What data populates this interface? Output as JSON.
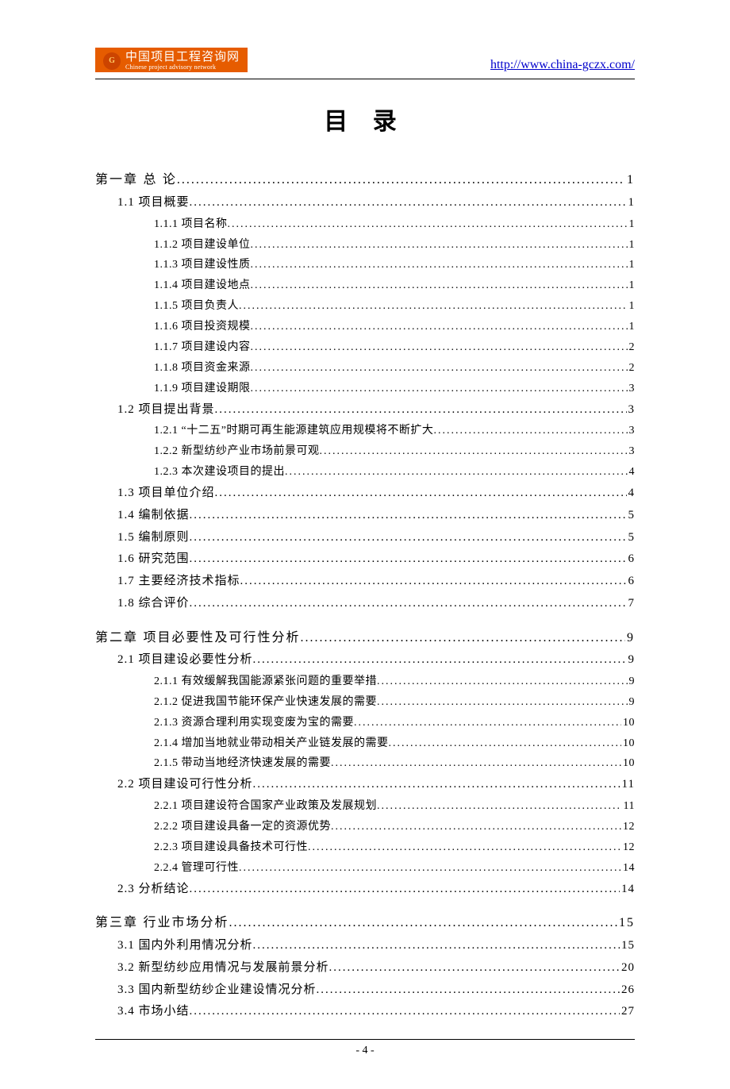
{
  "header": {
    "logo_cn": "中国项目工程咨询网",
    "logo_en": "Chinese project advisory network",
    "logo_mark": "G",
    "url": "http://www.china-gczx.com/",
    "logo_bg": "#e65c00",
    "link_color": "#0000cc"
  },
  "title": "目 录",
  "footer": "- 4 -",
  "toc": [
    {
      "level": 1,
      "label": "第一章 总 论",
      "page": "1"
    },
    {
      "level": 2,
      "label": "1.1 项目概要",
      "page": "1"
    },
    {
      "level": 3,
      "label": "1.1.1 项目名称",
      "page": "1"
    },
    {
      "level": 3,
      "label": "1.1.2 项目建设单位",
      "page": "1"
    },
    {
      "level": 3,
      "label": "1.1.3 项目建设性质",
      "page": "1"
    },
    {
      "level": 3,
      "label": "1.1.4 项目建设地点",
      "page": "1"
    },
    {
      "level": 3,
      "label": "1.1.5 项目负责人",
      "page": "1"
    },
    {
      "level": 3,
      "label": "1.1.6 项目投资规模",
      "page": "1"
    },
    {
      "level": 3,
      "label": "1.1.7 项目建设内容",
      "page": "2"
    },
    {
      "level": 3,
      "label": "1.1.8 项目资金来源",
      "page": "2"
    },
    {
      "level": 3,
      "label": "1.1.9 项目建设期限",
      "page": "3"
    },
    {
      "level": 2,
      "label": "1.2 项目提出背景",
      "page": "3"
    },
    {
      "level": 3,
      "label": "1.2.1 “十二五”时期可再生能源建筑应用规模将不断扩大",
      "page": "3"
    },
    {
      "level": 3,
      "label": "1.2.2 新型纺纱产业市场前景可观",
      "page": "3"
    },
    {
      "level": 3,
      "label": "1.2.3 本次建设项目的提出",
      "page": "4"
    },
    {
      "level": 2,
      "label": "1.3 项目单位介绍",
      "page": "4"
    },
    {
      "level": 2,
      "label": "1.4 编制依据",
      "page": "5"
    },
    {
      "level": 2,
      "label": "1.5 编制原则",
      "page": "5"
    },
    {
      "level": 2,
      "label": "1.6 研究范围",
      "page": "6"
    },
    {
      "level": 2,
      "label": "1.7 主要经济技术指标",
      "page": "6"
    },
    {
      "level": 2,
      "label": "1.8 综合评价",
      "page": "7"
    },
    {
      "level": 1,
      "label": "第二章 项目必要性及可行性分析",
      "page": "9"
    },
    {
      "level": 2,
      "label": "2.1 项目建设必要性分析",
      "page": "9"
    },
    {
      "level": 3,
      "label": "2.1.1 有效缓解我国能源紧张问题的重要举措",
      "page": "9"
    },
    {
      "level": 3,
      "label": "2.1.2 促进我国节能环保产业快速发展的需要",
      "page": "9"
    },
    {
      "level": 3,
      "label": "2.1.3 资源合理利用实现变废为宝的需要",
      "page": "10"
    },
    {
      "level": 3,
      "label": "2.1.4 增加当地就业带动相关产业链发展的需要",
      "page": "10"
    },
    {
      "level": 3,
      "label": "2.1.5 带动当地经济快速发展的需要",
      "page": "10"
    },
    {
      "level": 2,
      "label": "2.2 项目建设可行性分析",
      "page": "11"
    },
    {
      "level": 3,
      "label": "2.2.1 项目建设符合国家产业政策及发展规划",
      "page": "11"
    },
    {
      "level": 3,
      "label": "2.2.2 项目建设具备一定的资源优势",
      "page": "12"
    },
    {
      "level": 3,
      "label": "2.2.3 项目建设具备技术可行性",
      "page": "12"
    },
    {
      "level": 3,
      "label": "2.2.4 管理可行性",
      "page": "14"
    },
    {
      "level": 2,
      "label": "2.3 分析结论",
      "page": "14"
    },
    {
      "level": 1,
      "label": "第三章 行业市场分析",
      "page": "15"
    },
    {
      "level": 2,
      "label": "3.1 国内外利用情况分析",
      "page": "15"
    },
    {
      "level": 2,
      "label": "3.2 新型纺纱应用情况与发展前景分析",
      "page": "20"
    },
    {
      "level": 2,
      "label": "3.3 国内新型纺纱企业建设情况分析",
      "page": "26"
    },
    {
      "level": 2,
      "label": "3.4 市场小结",
      "page": "27"
    }
  ]
}
